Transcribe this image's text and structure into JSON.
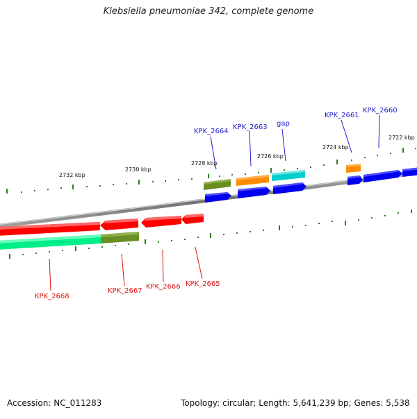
{
  "title": "Klebsiella pneumoniae 342, complete genome",
  "footer": {
    "accession": "Accession: NC_011283",
    "topology": "Topology: circular; Length: 5,641,239 bp; Genes: 5,538"
  },
  "scale_labels": [
    "2732 kbp",
    "2730 kbp",
    "2728 kbp",
    "2726 kbp",
    "2724 kbp",
    "2722 kbp"
  ],
  "upper_labels": [
    "KPK_2664",
    "KPK_2663",
    "gap",
    "KPK_2661",
    "KPK_2660"
  ],
  "lower_labels": [
    "KPK_2668",
    "KPK_2667",
    "KPK_2666",
    "KPK_2665"
  ],
  "colors": {
    "red": "#ff0000",
    "blue": "#0000ee",
    "olive": "#6b8e23",
    "orange": "#ff8c00",
    "cyan": "#00cccc",
    "spring_green": "#00ee88",
    "tick_green": "#2e7d1f",
    "backbone": "#808080",
    "label_blue": "#1a1acc",
    "label_red": "#dd1111"
  }
}
